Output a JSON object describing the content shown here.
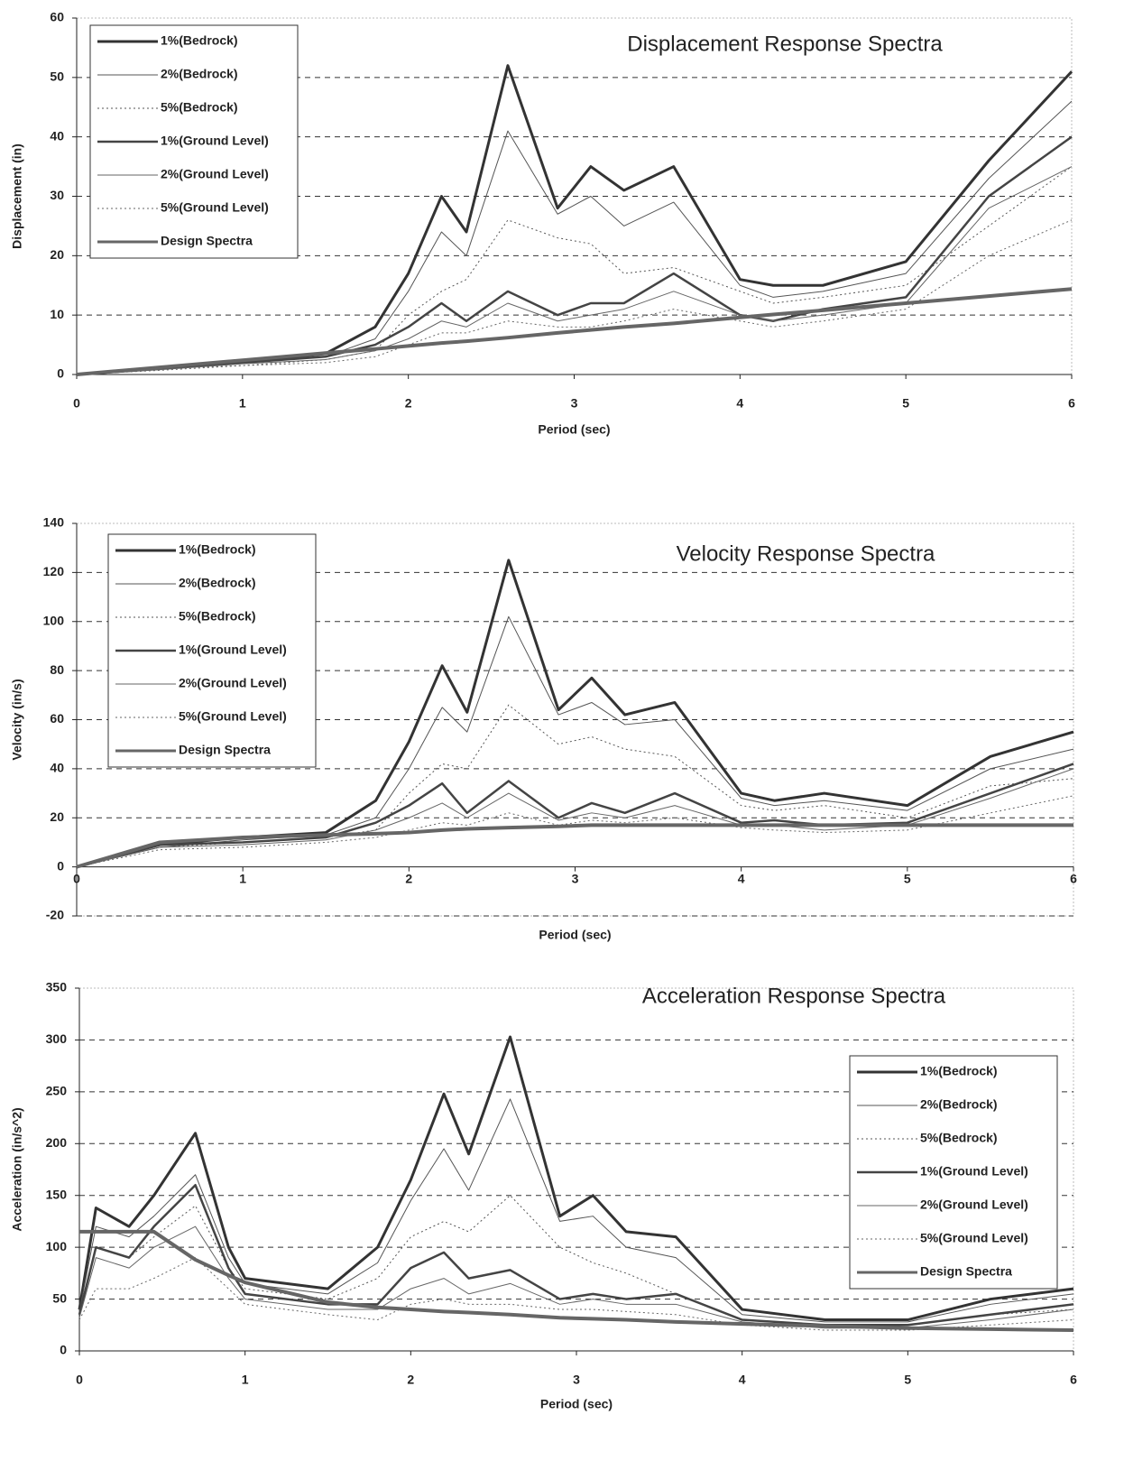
{
  "chart_data": [
    {
      "type": "line",
      "title": "Displacement Response Spectra",
      "x_label": "Period (sec)",
      "y_label": "Displacement (in)",
      "xlim": [
        0,
        6
      ],
      "xticks": [
        0,
        1,
        2,
        3,
        4,
        5,
        6
      ],
      "ylim": [
        0,
        60
      ],
      "yticks": [
        0,
        10,
        20,
        30,
        40,
        50,
        60
      ],
      "grid": true,
      "legend": "upper left",
      "x": [
        0,
        0.5,
        1,
        1.5,
        1.8,
        2,
        2.2,
        2.35,
        2.6,
        2.9,
        3.1,
        3.3,
        3.6,
        4,
        4.2,
        4.5,
        5,
        5.5,
        6
      ],
      "series": [
        {
          "name": "1%(Bedrock)",
          "color": "#333333",
          "line_width": 3,
          "dash": false,
          "values": [
            0,
            1,
            2,
            3.5,
            8,
            17,
            30,
            24,
            52,
            28,
            35,
            31,
            35,
            16,
            15,
            15,
            19,
            36,
            51
          ]
        },
        {
          "name": "2%(Bedrock)",
          "color": "#555555",
          "line_width": 1,
          "dash": false,
          "values": [
            0,
            1,
            2,
            3,
            6,
            14,
            24,
            20,
            41,
            27,
            30,
            25,
            29,
            15,
            13,
            14,
            17,
            33,
            46
          ]
        },
        {
          "name": "5%(Bedrock)",
          "color": "#555555",
          "line_width": 1,
          "dash": true,
          "values": [
            0,
            1,
            1.5,
            2.5,
            4,
            10,
            14,
            16,
            26,
            23,
            22,
            17,
            18,
            14,
            12,
            13,
            15,
            25,
            35
          ]
        },
        {
          "name": "1%(Ground Level)",
          "color": "#444444",
          "line_width": 2.5,
          "dash": false,
          "values": [
            0,
            1,
            2,
            3,
            5,
            8,
            12,
            9,
            14,
            10,
            12,
            12,
            17,
            10,
            9,
            11,
            13,
            30,
            40
          ]
        },
        {
          "name": "2%(Ground Level)",
          "color": "#666666",
          "line_width": 1,
          "dash": false,
          "values": [
            0,
            0.8,
            1.8,
            2.5,
            4,
            6,
            9,
            8,
            12,
            9,
            10,
            11,
            14,
            10,
            9,
            10,
            12,
            28,
            35
          ]
        },
        {
          "name": "5%(Ground Level)",
          "color": "#666666",
          "line_width": 1,
          "dash": true,
          "values": [
            0,
            0.7,
            1.5,
            2,
            3,
            5,
            7,
            7,
            9,
            8,
            8,
            9,
            11,
            9,
            8,
            9,
            11,
            20,
            26
          ]
        },
        {
          "name": "Design Spectra",
          "color": "#666666",
          "line_width": 4,
          "dash": false,
          "values": [
            0,
            1.2,
            2.4,
            3.6,
            4.3,
            4.8,
            5.3,
            5.6,
            6.2,
            7,
            7.5,
            8,
            8.6,
            9.6,
            10.1,
            10.8,
            12,
            13.2,
            14.4
          ]
        }
      ]
    },
    {
      "type": "line",
      "title": "Velocity Response Spectra",
      "x_label": "Period (sec)",
      "y_label": "Velocity (in/s)",
      "xlim": [
        0,
        6
      ],
      "xticks": [
        0,
        1,
        2,
        3,
        4,
        5,
        6
      ],
      "ylim": [
        -20,
        140
      ],
      "yticks": [
        -20,
        0,
        20,
        40,
        60,
        80,
        100,
        120,
        140
      ],
      "grid": true,
      "legend": "upper left",
      "x": [
        0,
        0.5,
        1,
        1.5,
        1.8,
        2,
        2.2,
        2.35,
        2.6,
        2.9,
        3.1,
        3.3,
        3.6,
        4,
        4.2,
        4.5,
        5,
        5.5,
        6
      ],
      "series": [
        {
          "name": "1%(Bedrock)",
          "color": "#333333",
          "line_width": 3,
          "dash": false,
          "values": [
            0,
            9,
            12,
            14,
            27,
            51,
            82,
            63,
            125,
            64,
            77,
            62,
            67,
            30,
            27,
            30,
            25,
            45,
            55
          ]
        },
        {
          "name": "2%(Bedrock)",
          "color": "#555555",
          "line_width": 1,
          "dash": false,
          "values": [
            0,
            8,
            11,
            13,
            20,
            40,
            65,
            55,
            102,
            62,
            67,
            58,
            60,
            28,
            25,
            27,
            23,
            40,
            48
          ]
        },
        {
          "name": "5%(Bedrock)",
          "color": "#555555",
          "line_width": 1,
          "dash": true,
          "values": [
            0,
            8,
            10,
            12,
            15,
            30,
            42,
            40,
            66,
            50,
            53,
            48,
            45,
            25,
            23,
            25,
            20,
            33,
            36
          ]
        },
        {
          "name": "1%(Ground Level)",
          "color": "#444444",
          "line_width": 2.5,
          "dash": false,
          "values": [
            0,
            9,
            10,
            12,
            18,
            25,
            34,
            22,
            35,
            20,
            26,
            22,
            30,
            18,
            19,
            17,
            18,
            30,
            42
          ]
        },
        {
          "name": "2%(Ground Level)",
          "color": "#666666",
          "line_width": 1,
          "dash": false,
          "values": [
            0,
            8,
            9,
            11,
            15,
            20,
            26,
            20,
            30,
            19,
            22,
            20,
            25,
            17,
            17,
            15,
            17,
            28,
            40
          ]
        },
        {
          "name": "5%(Ground Level)",
          "color": "#666666",
          "line_width": 1,
          "dash": true,
          "values": [
            0,
            7,
            8,
            10,
            12,
            15,
            18,
            17,
            22,
            17,
            19,
            18,
            20,
            16,
            15,
            14,
            15,
            22,
            29
          ]
        },
        {
          "name": "Design Spectra",
          "color": "#666666",
          "line_width": 4,
          "dash": false,
          "values": [
            0,
            10,
            12,
            13,
            13.5,
            14,
            15,
            15.5,
            16,
            16.5,
            17,
            17,
            17,
            17,
            17,
            17,
            17,
            17,
            17
          ]
        }
      ]
    },
    {
      "type": "line",
      "title": "Acceleration Response Spectra",
      "x_label": "Period (sec)",
      "y_label": "Acceleration (in/s^2)",
      "xlim": [
        0,
        6
      ],
      "xticks": [
        0,
        1,
        2,
        3,
        4,
        5,
        6
      ],
      "ylim": [
        0,
        350
      ],
      "yticks": [
        0,
        50,
        100,
        150,
        200,
        250,
        300,
        350
      ],
      "grid": true,
      "legend": "right",
      "x": [
        0,
        0.1,
        0.3,
        0.45,
        0.7,
        0.9,
        1,
        1.5,
        1.8,
        2,
        2.2,
        2.35,
        2.6,
        2.9,
        3.1,
        3.3,
        3.6,
        4,
        4.5,
        5,
        5.5,
        6
      ],
      "series": [
        {
          "name": "1%(Bedrock)",
          "color": "#333333",
          "line_width": 3,
          "dash": false,
          "values": [
            40,
            138,
            120,
            150,
            210,
            100,
            70,
            60,
            100,
            165,
            248,
            190,
            303,
            130,
            150,
            115,
            110,
            40,
            30,
            30,
            50,
            60
          ]
        },
        {
          "name": "2%(Bedrock)",
          "color": "#555555",
          "line_width": 1,
          "dash": false,
          "values": [
            38,
            120,
            110,
            130,
            170,
            90,
            65,
            55,
            85,
            145,
            195,
            155,
            243,
            125,
            130,
            100,
            90,
            35,
            28,
            28,
            45,
            55
          ]
        },
        {
          "name": "5%(Bedrock)",
          "color": "#555555",
          "line_width": 1,
          "dash": true,
          "values": [
            35,
            100,
            90,
            110,
            140,
            80,
            60,
            50,
            70,
            110,
            125,
            115,
            150,
            100,
            85,
            75,
            55,
            30,
            25,
            25,
            35,
            40
          ]
        },
        {
          "name": "1%(Ground Level)",
          "color": "#444444",
          "line_width": 2.5,
          "dash": false,
          "values": [
            35,
            100,
            90,
            120,
            160,
            80,
            55,
            45,
            45,
            80,
            95,
            70,
            78,
            50,
            55,
            50,
            55,
            30,
            25,
            25,
            35,
            45
          ]
        },
        {
          "name": "2%(Ground Level)",
          "color": "#666666",
          "line_width": 1,
          "dash": false,
          "values": [
            32,
            90,
            80,
            100,
            120,
            70,
            50,
            40,
            40,
            60,
            70,
            55,
            65,
            45,
            50,
            45,
            45,
            28,
            22,
            22,
            30,
            40
          ]
        },
        {
          "name": "5%(Ground Level)",
          "color": "#666666",
          "line_width": 1,
          "dash": true,
          "values": [
            30,
            60,
            60,
            70,
            90,
            60,
            45,
            35,
            30,
            45,
            50,
            45,
            45,
            40,
            40,
            38,
            35,
            25,
            20,
            20,
            25,
            30
          ]
        },
        {
          "name": "Design Spectra",
          "color": "#666666",
          "line_width": 4,
          "dash": false,
          "values": [
            115,
            115,
            115,
            115,
            88,
            73,
            66,
            47,
            42,
            40,
            38,
            37,
            35,
            32,
            31,
            30,
            28,
            26,
            24,
            22,
            21,
            20
          ]
        }
      ]
    }
  ]
}
